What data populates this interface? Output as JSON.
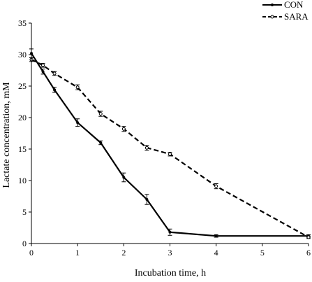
{
  "chart_data": {
    "type": "line",
    "title": "",
    "xlabel": "Incubation time, h",
    "ylabel": "Lactate concentration, mM",
    "xlim": [
      0,
      6
    ],
    "ylim": [
      0,
      35
    ],
    "x_ticks": [
      "0",
      "1",
      "2",
      "3",
      "4",
      "5",
      "6"
    ],
    "y_ticks": [
      "0",
      "5",
      "10",
      "15",
      "20",
      "25",
      "30",
      "35"
    ],
    "grid": false,
    "legend_position": "top-right",
    "series": [
      {
        "name": "CON",
        "line_style": "solid",
        "marker": "filled-dot",
        "color": "#000000",
        "x": [
          0,
          0.25,
          0.5,
          1,
          1.5,
          2,
          2.5,
          3,
          4,
          6
        ],
        "y": [
          30.2,
          27.3,
          24.4,
          19.2,
          16.0,
          10.5,
          7.0,
          1.8,
          1.2,
          1.2
        ],
        "err": [
          0.7,
          0.4,
          0.4,
          0.6,
          0.3,
          0.7,
          0.8,
          0.5,
          0.2,
          0.2
        ]
      },
      {
        "name": "SARA",
        "line_style": "dashed",
        "marker": "open-circle",
        "color": "#000000",
        "x": [
          0,
          0.25,
          0.5,
          1,
          1.5,
          2,
          2.5,
          3,
          4,
          6
        ],
        "y": [
          29.2,
          28.3,
          27.0,
          24.8,
          20.6,
          18.2,
          15.2,
          14.2,
          9.1,
          1.0
        ],
        "err": [
          0.3,
          0.3,
          0.3,
          0.4,
          0.4,
          0.4,
          0.4,
          0.3,
          0.4,
          0.2
        ]
      }
    ]
  }
}
